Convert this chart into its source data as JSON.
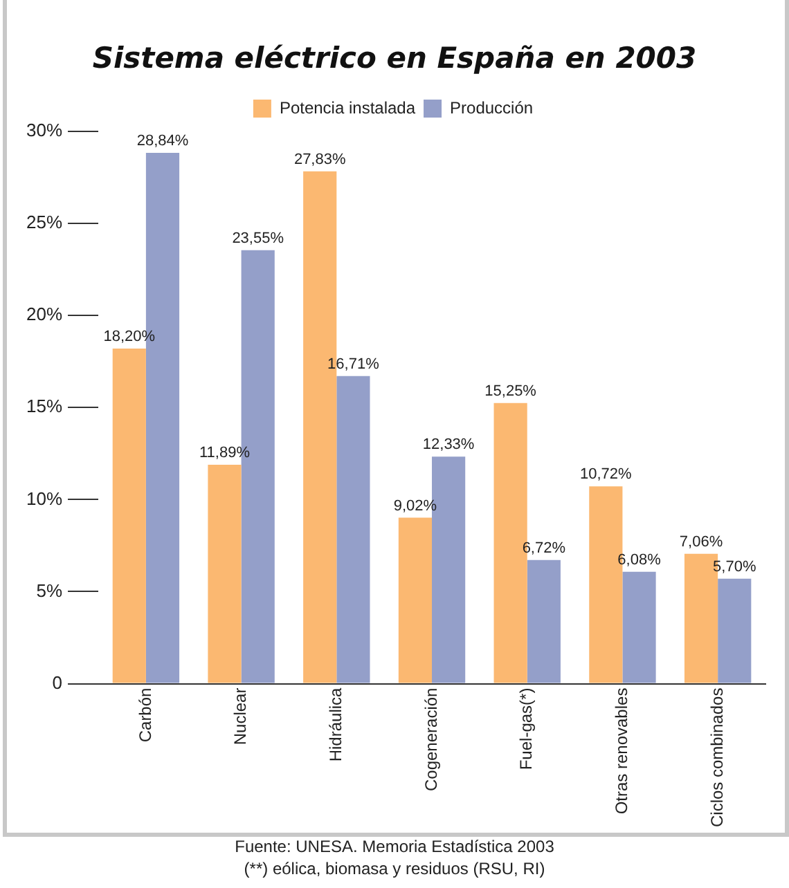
{
  "chart_data": {
    "type": "bar",
    "title": "Sistema eléctrico en España en 2003",
    "categories": [
      "Carbón",
      "Nuclear",
      "Hidráulica",
      "Cogeneración",
      "Fuel-gas(*)",
      "Otras renovables",
      "Ciclos combinados"
    ],
    "series": [
      {
        "name": "Potencia instalada",
        "color": "#fbb871",
        "values": [
          18.2,
          11.89,
          27.83,
          9.02,
          15.25,
          10.72,
          7.06
        ],
        "value_labels": [
          "18,20%",
          "11,89%",
          "27,83%",
          "9,02%",
          "15,25%",
          "10,72%",
          "7,06%"
        ]
      },
      {
        "name": "Producción",
        "color": "#949fc9",
        "values": [
          28.84,
          23.55,
          16.71,
          12.33,
          6.72,
          6.08,
          5.7
        ],
        "value_labels": [
          "28,84%",
          "23,55%",
          "16,71%",
          "12,33%",
          "6,72%",
          "6,08%",
          "5,70%"
        ]
      }
    ],
    "ylim": [
      0,
      30
    ],
    "yticks": [
      {
        "value": 0,
        "label": "0"
      },
      {
        "value": 5,
        "label": "5%"
      },
      {
        "value": 10,
        "label": "10%"
      },
      {
        "value": 15,
        "label": "15%"
      },
      {
        "value": 20,
        "label": "20%"
      },
      {
        "value": 25,
        "label": "25%"
      },
      {
        "value": 30,
        "label": "30%"
      }
    ],
    "grid": false,
    "legend": "top",
    "annotations": [
      "Fuente: UNESA. Memoria Estadística 2003",
      "(**) eólica, biomasa y residuos (RSU, RI)"
    ]
  }
}
